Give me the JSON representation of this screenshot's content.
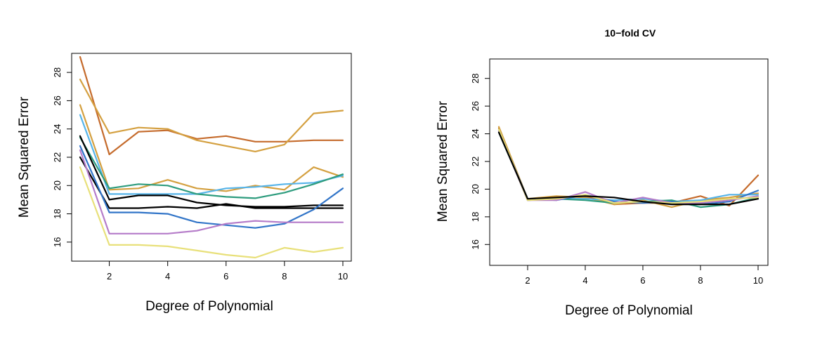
{
  "chart_data": [
    {
      "type": "line",
      "title": "",
      "xlabel": "Degree of Polynomial",
      "ylabel": "Mean Squared Error",
      "x": [
        1,
        2,
        3,
        4,
        5,
        6,
        7,
        8,
        9,
        10
      ],
      "xlim": [
        1,
        10
      ],
      "ylim": [
        15,
        29
      ],
      "xticks": [
        2,
        4,
        6,
        8,
        10
      ],
      "yticks": [
        16,
        18,
        20,
        22,
        24,
        26,
        28
      ],
      "grid": false,
      "series": [
        {
          "color": "#c56b2c",
          "values": [
            29.1,
            22.2,
            23.8,
            23.9,
            23.3,
            23.5,
            23.1,
            23.1,
            23.2,
            23.2
          ]
        },
        {
          "color": "#d4a040",
          "values": [
            27.5,
            23.7,
            24.1,
            24.0,
            23.2,
            22.8,
            22.4,
            22.9,
            25.1,
            25.3
          ]
        },
        {
          "color": "#d4a040",
          "values": [
            25.7,
            19.7,
            19.8,
            20.4,
            19.8,
            19.6,
            20.0,
            19.7,
            21.3,
            20.6
          ]
        },
        {
          "color": "#56b4e9",
          "values": [
            25.0,
            19.4,
            19.4,
            19.4,
            19.4,
            19.8,
            19.9,
            20.1,
            20.2,
            20.7
          ]
        },
        {
          "color": "#2e9c7e",
          "values": [
            23.4,
            19.8,
            20.1,
            20.0,
            19.4,
            19.2,
            19.1,
            19.5,
            20.1,
            20.8
          ]
        },
        {
          "color": "#000000",
          "values": [
            23.5,
            19.0,
            19.3,
            19.3,
            18.8,
            18.6,
            18.5,
            18.5,
            18.6,
            18.6
          ]
        },
        {
          "color": "#000000",
          "values": [
            22.0,
            18.4,
            18.4,
            18.5,
            18.4,
            18.7,
            18.4,
            18.4,
            18.4,
            18.4
          ]
        },
        {
          "color": "#3275c8",
          "values": [
            22.8,
            18.1,
            18.1,
            18.0,
            17.4,
            17.2,
            17.0,
            17.3,
            18.3,
            19.8
          ]
        },
        {
          "color": "#b57cc9",
          "values": [
            22.5,
            16.6,
            16.6,
            16.6,
            16.8,
            17.3,
            17.5,
            17.4,
            17.4,
            17.4
          ]
        },
        {
          "color": "#e8e07a",
          "values": [
            21.3,
            15.8,
            15.8,
            15.7,
            15.4,
            15.1,
            14.9,
            15.6,
            15.3,
            15.6
          ]
        }
      ]
    },
    {
      "type": "line",
      "title": "10−fold CV",
      "xlabel": "Degree of Polynomial",
      "ylabel": "Mean Squared Error",
      "x": [
        1,
        2,
        3,
        4,
        5,
        6,
        7,
        8,
        9,
        10
      ],
      "xlim": [
        1,
        10
      ],
      "ylim": [
        15,
        29
      ],
      "xticks": [
        2,
        4,
        6,
        8,
        10
      ],
      "yticks": [
        16,
        18,
        20,
        22,
        24,
        26,
        28
      ],
      "grid": false,
      "series": [
        {
          "color": "#c56b2c",
          "values": [
            24.4,
            19.2,
            19.3,
            19.5,
            18.9,
            19.0,
            19.0,
            19.5,
            18.8,
            21.0
          ]
        },
        {
          "color": "#d4a040",
          "values": [
            24.5,
            19.3,
            19.5,
            19.4,
            18.9,
            19.2,
            18.7,
            19.2,
            19.4,
            19.7
          ]
        },
        {
          "color": "#56b4e9",
          "values": [
            24.3,
            19.2,
            19.3,
            19.3,
            19.2,
            19.3,
            19.1,
            19.2,
            19.6,
            19.6
          ]
        },
        {
          "color": "#2e9c7e",
          "values": [
            24.1,
            19.3,
            19.3,
            19.2,
            19.0,
            19.1,
            19.2,
            18.7,
            18.9,
            19.4
          ]
        },
        {
          "color": "#3275c8",
          "values": [
            24.2,
            19.3,
            19.2,
            19.6,
            19.1,
            19.0,
            19.1,
            18.9,
            19.1,
            19.9
          ]
        },
        {
          "color": "#b57cc9",
          "values": [
            24.2,
            19.2,
            19.2,
            19.8,
            19.0,
            19.4,
            19.0,
            19.0,
            19.2,
            19.5
          ]
        },
        {
          "color": "#e8e07a",
          "values": [
            24.3,
            19.2,
            19.3,
            19.6,
            19.0,
            19.1,
            19.0,
            19.1,
            19.3,
            19.4
          ]
        },
        {
          "color": "#000000",
          "values": [
            24.1,
            19.3,
            19.4,
            19.5,
            19.4,
            19.1,
            18.9,
            18.9,
            18.9,
            19.3
          ]
        }
      ]
    }
  ]
}
